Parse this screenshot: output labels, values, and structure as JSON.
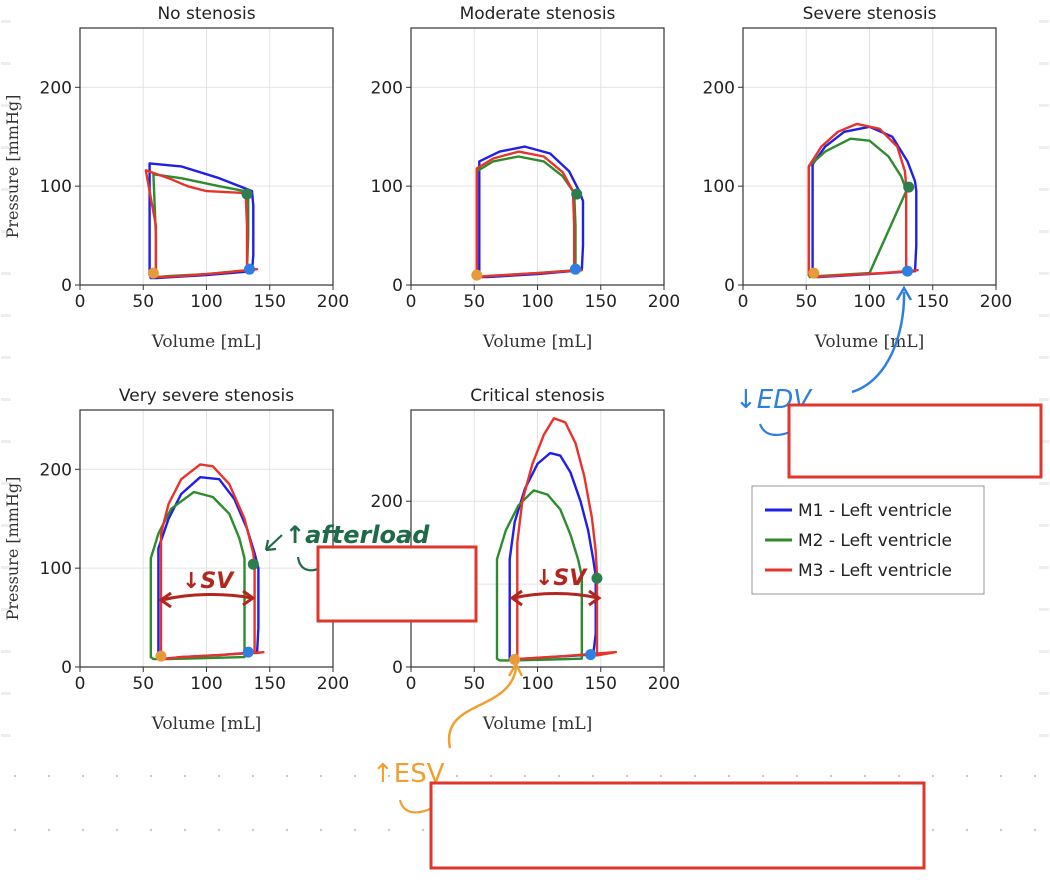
{
  "colors": {
    "m1": "#1f1fe6",
    "m2": "#2e8b2e",
    "m3": "#e8332c",
    "edv_marker": "#2f7fe0",
    "esv_marker": "#e69a3a",
    "afterload_marker": "#2e7d4f",
    "note_afterload": "#1f6a4a",
    "note_sv": "#b3261e",
    "note_edv": "#2f7fe0",
    "note_esv": "#f0a030",
    "redact_border": "#e0362c",
    "grid": "#e3e3e3",
    "frame": "#333333"
  },
  "annotations": {
    "edv": "↓EDV",
    "afterload": "↑afterload",
    "sv": "↓SV",
    "esv": "↑ESV"
  },
  "chart_data": {
    "type": "line",
    "legend": {
      "position": "right-middle",
      "entries": [
        {
          "label": "M1 - Left ventricle",
          "color_key": "m1"
        },
        {
          "label": "M2 - Left ventricle",
          "color_key": "m2"
        },
        {
          "label": "M3 - Left ventricle",
          "color_key": "m3"
        }
      ]
    },
    "panels": [
      {
        "title": "No stenosis",
        "xlabel": "Volume [mL]",
        "ylabel": "Pressure [mmHg]",
        "xlim": [
          0,
          200
        ],
        "ylim": [
          0,
          260
        ],
        "xticks": [
          0,
          50,
          100,
          150,
          200
        ],
        "yticks": [
          0,
          100,
          200
        ],
        "grid": true,
        "series": [
          {
            "name": "M1 - Left ventricle",
            "color_key": "m1",
            "x": [
              55,
              55,
              55,
              80,
              110,
              130,
              136,
              137,
              137,
              136,
              100,
              60,
              56,
              55
            ],
            "y": [
              10,
              80,
              123,
              120,
              108,
              98,
              95,
              80,
              30,
              14,
              10,
              7,
              7,
              10
            ]
          },
          {
            "name": "M2 - Left ventricle",
            "color_key": "m2",
            "x": [
              60,
              60,
              58,
              80,
              110,
              130,
              133,
              133,
              132,
              100,
              70,
              61,
              60
            ],
            "y": [
              10,
              50,
              112,
              108,
              100,
              95,
              92,
              50,
              15,
              11,
              9,
              8,
              10
            ]
          },
          {
            "name": "M3 - Left ventricle",
            "color_key": "m3",
            "x": [
              60,
              60,
              52,
              70,
              85,
              100,
              115,
              131,
              132,
              132,
              140,
              110,
              80,
              62,
              60
            ],
            "y": [
              10,
              60,
              116,
              108,
              100,
              95,
              94,
              93,
              60,
              15,
              16,
              12,
              9,
              8,
              10
            ]
          }
        ],
        "markers": [
          {
            "x": 58,
            "y": 12,
            "color_key": "esv_marker"
          },
          {
            "x": 134,
            "y": 16,
            "color_key": "edv_marker"
          },
          {
            "x": 132,
            "y": 92,
            "color_key": "afterload_marker"
          }
        ]
      },
      {
        "title": "Moderate stenosis",
        "xlabel": "Volume [mL]",
        "ylabel": "Pressure [mmHg]",
        "xlim": [
          0,
          200
        ],
        "ylim": [
          0,
          260
        ],
        "xticks": [
          0,
          50,
          100,
          150,
          200
        ],
        "yticks": [
          0,
          100,
          200
        ],
        "grid": true,
        "series": [
          {
            "name": "M1 - Left ventricle",
            "color_key": "m1",
            "x": [
              54,
              54,
              54,
              70,
              90,
              110,
              125,
              133,
              136,
              136,
              135,
              100,
              60,
              55,
              54
            ],
            "y": [
              10,
              60,
              125,
              135,
              140,
              133,
              115,
              95,
              85,
              40,
              15,
              11,
              8,
              8,
              10
            ]
          },
          {
            "name": "M2 - Left ventricle",
            "color_key": "m2",
            "x": [
              52,
              52,
              52,
              65,
              85,
              105,
              120,
              129,
              130,
              130,
              100,
              60,
              53,
              52
            ],
            "y": [
              10,
              50,
              115,
              125,
              130,
              125,
              110,
              93,
              60,
              15,
              12,
              9,
              8,
              10
            ]
          },
          {
            "name": "M3 - Left ventricle",
            "color_key": "m3",
            "x": [
              52,
              52,
              52,
              65,
              85,
              105,
              120,
              128,
              129,
              129,
              135,
              100,
              60,
              53,
              52
            ],
            "y": [
              10,
              60,
              118,
              128,
              135,
              130,
              114,
              95,
              60,
              14,
              15,
              12,
              9,
              8,
              10
            ]
          }
        ],
        "markers": [
          {
            "x": 52,
            "y": 10,
            "color_key": "esv_marker"
          },
          {
            "x": 130,
            "y": 16,
            "color_key": "edv_marker"
          },
          {
            "x": 131,
            "y": 92,
            "color_key": "afterload_marker"
          }
        ]
      },
      {
        "title": "Severe stenosis",
        "xlabel": "Volume [mL]",
        "ylabel": "Pressure [mmHg]",
        "xlim": [
          0,
          200
        ],
        "ylim": [
          0,
          260
        ],
        "xticks": [
          0,
          50,
          100,
          150,
          200
        ],
        "yticks": [
          0,
          100,
          200
        ],
        "grid": true,
        "series": [
          {
            "name": "M1 - Left ventricle",
            "color_key": "m1",
            "x": [
              55,
              55,
              55,
              65,
              80,
              100,
              118,
              130,
              136,
              137,
              137,
              136,
              100,
              60,
              56,
              55
            ],
            "y": [
              10,
              60,
              122,
              140,
              155,
              160,
              150,
              125,
              105,
              95,
              40,
              14,
              11,
              8,
              8,
              10
            ]
          },
          {
            "name": "M2 - Left ventricle",
            "color_key": "m2",
            "x": [
              52,
              52,
              52,
              65,
              85,
              100,
              115,
              125,
              128,
              129,
              100,
              60,
              53,
              52
            ],
            "y": [
              10,
              50,
              120,
              135,
              148,
              146,
              130,
              110,
              100,
              95,
              12,
              9,
              8,
              10
            ]
          },
          {
            "name": "M3 - Left ventricle",
            "color_key": "m3",
            "x": [
              52,
              52,
              52,
              62,
              75,
              90,
              108,
              122,
              128,
              129,
              129,
              138,
              110,
              80,
              55,
              52
            ],
            "y": [
              10,
              60,
              120,
              140,
              155,
              163,
              158,
              140,
              115,
              100,
              14,
              15,
              12,
              10,
              8,
              10
            ]
          }
        ],
        "markers": [
          {
            "x": 56,
            "y": 12,
            "color_key": "esv_marker"
          },
          {
            "x": 130,
            "y": 14,
            "color_key": "edv_marker"
          },
          {
            "x": 131,
            "y": 99,
            "color_key": "afterload_marker"
          }
        ]
      },
      {
        "title": "Very severe stenosis",
        "xlabel": "Volume [mL]",
        "ylabel": "Pressure [mmHg]",
        "xlim": [
          0,
          200
        ],
        "ylim": [
          0,
          260
        ],
        "xticks": [
          0,
          50,
          100,
          150,
          200
        ],
        "yticks": [
          0,
          100,
          200
        ],
        "grid": true,
        "series": [
          {
            "name": "M1 - Left ventricle",
            "color_key": "m1",
            "x": [
              62,
              62,
              62,
              70,
              80,
              95,
              110,
              122,
              132,
              138,
              141,
              141,
              140,
              110,
              80,
              64,
              62
            ],
            "y": [
              10,
              60,
              120,
              150,
              175,
              192,
              190,
              170,
              140,
              115,
              100,
              40,
              15,
              12,
              10,
              8,
              10
            ]
          },
          {
            "name": "M2 - Left ventricle",
            "color_key": "m2",
            "x": [
              56,
              56,
              56,
              62,
              72,
              90,
              105,
              118,
              126,
              130,
              130,
              100,
              70,
              58,
              56
            ],
            "y": [
              10,
              60,
              110,
              135,
              160,
              177,
              172,
              155,
              130,
              110,
              10,
              9,
              8,
              8,
              10
            ]
          },
          {
            "name": "M3 - Left ventricle",
            "color_key": "m3",
            "x": [
              64,
              64,
              64,
              70,
              80,
              95,
              105,
              118,
              130,
              137,
              138,
              138,
              145,
              110,
              80,
              66,
              64
            ],
            "y": [
              10,
              60,
              135,
              165,
              190,
              205,
              203,
              185,
              150,
              115,
              100,
              14,
              15,
              12,
              10,
              8,
              10
            ]
          }
        ],
        "markers": [
          {
            "x": 64,
            "y": 11,
            "color_key": "esv_marker"
          },
          {
            "x": 133,
            "y": 15,
            "color_key": "edv_marker"
          },
          {
            "x": 137,
            "y": 104,
            "color_key": "afterload_marker"
          }
        ]
      },
      {
        "title": "Critical stenosis",
        "xlabel": "Volume [mL]",
        "ylabel": "Pressure [mmHg]",
        "xlim": [
          0,
          200
        ],
        "ylim": [
          0,
          310
        ],
        "xticks": [
          0,
          50,
          100,
          150,
          200
        ],
        "yticks": [
          0,
          100,
          200
        ],
        "grid": true,
        "series": [
          {
            "name": "M1 - Left ventricle",
            "color_key": "m1",
            "x": [
              78,
              78,
              78,
              82,
              90,
              100,
              110,
              118,
              126,
              134,
              140,
              144,
              146,
              146,
              144,
              110,
              80,
              78
            ],
            "y": [
              10,
              60,
              130,
              175,
              215,
              245,
              258,
              255,
              235,
              200,
              165,
              130,
              110,
              40,
              15,
              12,
              9,
              10
            ]
          },
          {
            "name": "M2 - Left ventricle",
            "color_key": "m2",
            "x": [
              68,
              68,
              68,
              75,
              85,
              97,
              108,
              118,
              126,
              132,
              135,
              135,
              135,
              110,
              80,
              70,
              68
            ],
            "y": [
              10,
              60,
              130,
              165,
              195,
              213,
              208,
              190,
              160,
              130,
              110,
              60,
              10,
              9,
              8,
              8,
              10
            ]
          },
          {
            "name": "M3 - Left ventricle",
            "color_key": "m3",
            "x": [
              84,
              84,
              84,
              88,
              96,
              105,
              113,
              122,
              130,
              137,
              143,
              146,
              147,
              147,
              162,
              120,
              88,
              84
            ],
            "y": [
              10,
              60,
              150,
              200,
              245,
              280,
              300,
              295,
              270,
              230,
              180,
              140,
              110,
              14,
              18,
              13,
              10,
              10
            ]
          }
        ],
        "markers": [
          {
            "x": 82,
            "y": 9,
            "color_key": "esv_marker"
          },
          {
            "x": 142,
            "y": 15,
            "color_key": "edv_marker"
          },
          {
            "x": 147,
            "y": 107,
            "color_key": "afterload_marker"
          }
        ]
      }
    ]
  }
}
